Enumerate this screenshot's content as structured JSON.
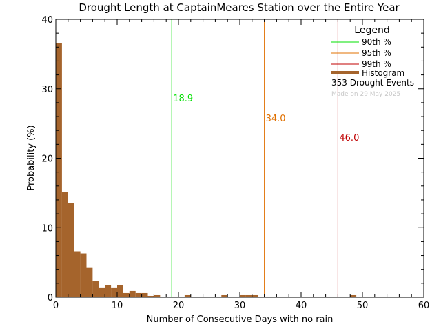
{
  "chart_data": {
    "type": "bar",
    "title": "Drought Length at CaptainMeares Station over the Entire Year",
    "xlabel": "Number of Consecutive Days with no rain",
    "ylabel": "Probability (%)",
    "xlim": [
      0,
      60
    ],
    "ylim": [
      0,
      40
    ],
    "x_ticks": [
      "0",
      "10",
      "20",
      "30",
      "40",
      "50",
      "60"
    ],
    "y_ticks": [
      "0",
      "10",
      "20",
      "30",
      "40"
    ],
    "bar_color": "#a5642c",
    "histogram": {
      "name": "Histogram",
      "x": [
        1,
        2,
        3,
        4,
        5,
        6,
        7,
        8,
        9,
        10,
        11,
        12,
        13,
        14,
        15,
        16,
        17,
        22,
        28,
        31,
        32,
        33,
        49
      ],
      "values": [
        36.6,
        15.1,
        13.5,
        6.6,
        6.3,
        4.3,
        2.3,
        1.4,
        1.7,
        1.4,
        1.7,
        0.6,
        0.9,
        0.6,
        0.6,
        0.2,
        0.3,
        0.3,
        0.3,
        0.3,
        0.3,
        0.3,
        0.3
      ]
    },
    "percentiles": [
      {
        "name": "90th %",
        "value": 18.9,
        "label": "18.9",
        "color": "#00e000"
      },
      {
        "name": "95th %",
        "value": 34.0,
        "label": "34.0",
        "color": "#e07000"
      },
      {
        "name": "99th %",
        "value": 46.0,
        "label": "46.0",
        "color": "#c00000"
      }
    ],
    "legend": {
      "title": "Legend",
      "position": "top-right",
      "events": "353 Drought Events",
      "made_on": "Made on 29 May 2025"
    }
  }
}
